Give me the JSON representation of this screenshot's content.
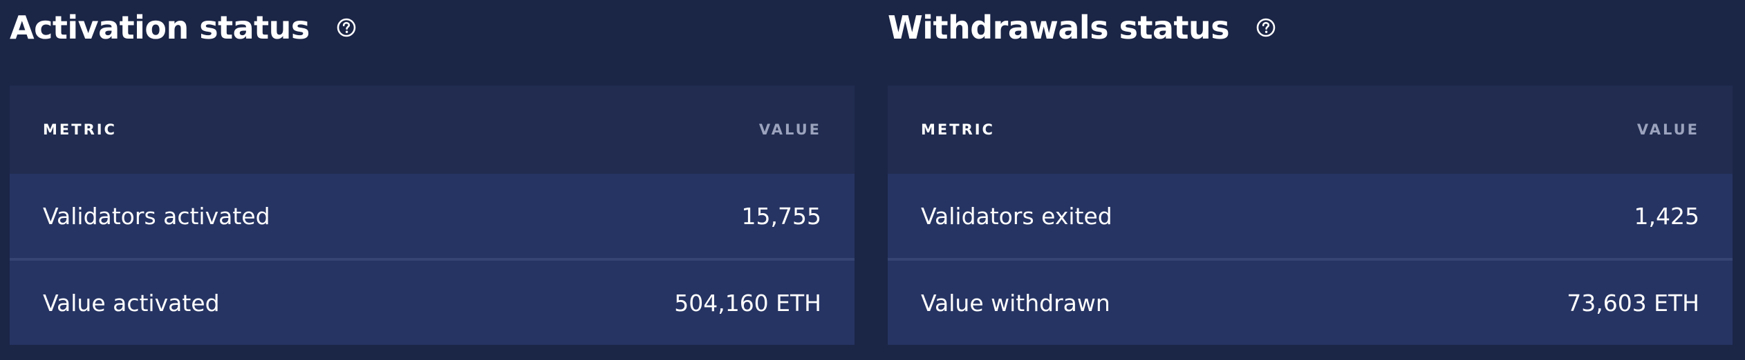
{
  "colors": {
    "page_background": "#1b2546",
    "table_header_background": "#212c50",
    "row_background": "#263463",
    "row_divider": "#354472",
    "header_value_text": "#9ba3bd",
    "text": "#ffffff"
  },
  "panels": [
    {
      "title": "Activation status",
      "help_icon": "question-circle-icon",
      "columns": {
        "metric": "METRIC",
        "value": "VALUE"
      },
      "rows": [
        {
          "metric": "Validators activated",
          "value": "15,755"
        },
        {
          "metric": "Value activated",
          "value": "504,160 ETH"
        }
      ]
    },
    {
      "title": "Withdrawals status",
      "help_icon": "question-circle-icon",
      "columns": {
        "metric": "METRIC",
        "value": "VALUE"
      },
      "rows": [
        {
          "metric": "Validators exited",
          "value": "1,425"
        },
        {
          "metric": "Value withdrawn",
          "value": "73,603 ETH"
        }
      ]
    }
  ]
}
